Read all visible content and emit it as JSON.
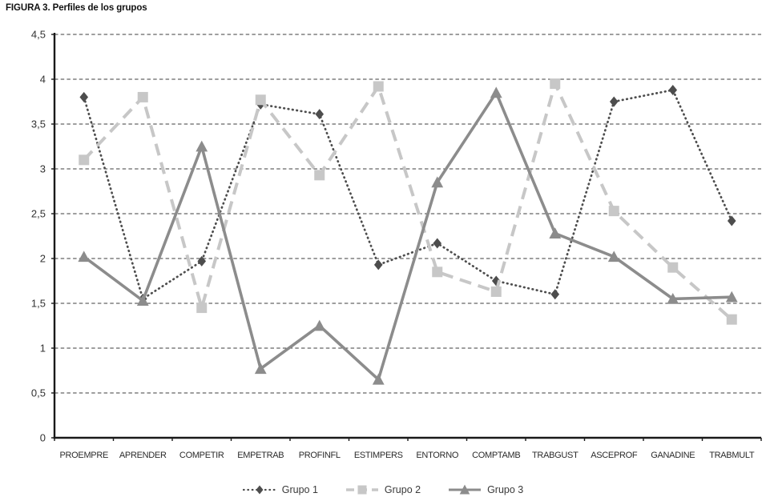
{
  "chart_data": {
    "type": "line",
    "title": "FIGURA 3. Perfiles de los grupos",
    "categories": [
      "PROEMPRE",
      "APRENDER",
      "COMPETIR",
      "EMPETRAB",
      "PROFINFL",
      "ESTIMPERS",
      "ENTORNO",
      "COMPTAMB",
      "TRABGUST",
      "ASCEPROF",
      "GANADINE",
      "TRABMULT"
    ],
    "series": [
      {
        "name": "Grupo 1",
        "color": "#4d4d4d",
        "line_style": "dotted",
        "marker": "diamond",
        "values": [
          3.8,
          1.55,
          1.97,
          3.72,
          3.61,
          1.93,
          2.17,
          1.75,
          1.6,
          3.75,
          3.88,
          2.42
        ]
      },
      {
        "name": "Grupo 2",
        "color": "#c7c7c7",
        "line_style": "dashed",
        "marker": "square",
        "values": [
          3.1,
          3.8,
          1.45,
          3.77,
          2.93,
          3.92,
          1.85,
          1.63,
          3.95,
          2.53,
          1.9,
          1.32
        ]
      },
      {
        "name": "Grupo 3",
        "color": "#8c8c8c",
        "line_style": "solid",
        "marker": "triangle",
        "values": [
          2.02,
          1.53,
          3.25,
          0.77,
          1.25,
          0.65,
          2.85,
          3.85,
          2.28,
          2.02,
          1.55,
          1.57
        ]
      }
    ],
    "ylim": [
      0,
      4.5
    ],
    "yticks": [
      {
        "value": 0,
        "label": "0"
      },
      {
        "value": 0.5,
        "label": "0,5"
      },
      {
        "value": 1,
        "label": "1"
      },
      {
        "value": 1.5,
        "label": "1,5"
      },
      {
        "value": 2,
        "label": "2"
      },
      {
        "value": 2.5,
        "label": "2,5"
      },
      {
        "value": 3,
        "label": "3"
      },
      {
        "value": 3.5,
        "label": "3,5"
      },
      {
        "value": 4,
        "label": "4"
      },
      {
        "value": 4.5,
        "label": "4,5"
      }
    ],
    "grid": "horizontal-dashed",
    "legend_position": "bottom-center",
    "axis_color": "#1a1a1a",
    "gridline_color": "#3d3d3d",
    "tick_label_color": "#333333",
    "category_label_color": "#2b2b2b"
  }
}
